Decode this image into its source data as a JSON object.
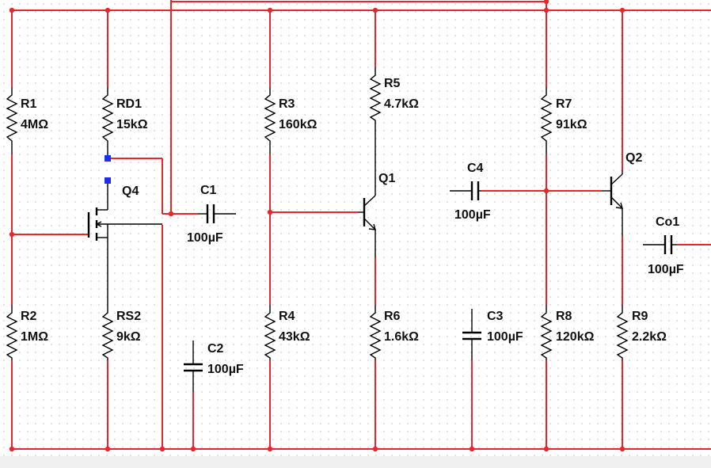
{
  "colors": {
    "wire": "#e8262b",
    "component": "#000000",
    "probe": "#1f2cf0",
    "grid_dot": "#c9c9c9"
  },
  "components": [
    {
      "id": "R1",
      "value": "4MΩ"
    },
    {
      "id": "R2",
      "value": "1MΩ"
    },
    {
      "id": "RD1",
      "value": "15kΩ"
    },
    {
      "id": "RS2",
      "value": "9kΩ"
    },
    {
      "id": "Q4",
      "value": ""
    },
    {
      "id": "C1",
      "value": "100µF"
    },
    {
      "id": "C2",
      "value": "100µF"
    },
    {
      "id": "R3",
      "value": "160kΩ"
    },
    {
      "id": "R4",
      "value": "43kΩ"
    },
    {
      "id": "R5",
      "value": "4.7kΩ"
    },
    {
      "id": "R6",
      "value": "1.6kΩ"
    },
    {
      "id": "Q1",
      "value": ""
    },
    {
      "id": "C4",
      "value": "100µF"
    },
    {
      "id": "C3",
      "value": "100µF"
    },
    {
      "id": "R7",
      "value": "91kΩ"
    },
    {
      "id": "R8",
      "value": "120kΩ"
    },
    {
      "id": "Q2",
      "value": ""
    },
    {
      "id": "R9",
      "value": "2.2kΩ"
    },
    {
      "id": "Co1",
      "value": "100µF"
    }
  ]
}
